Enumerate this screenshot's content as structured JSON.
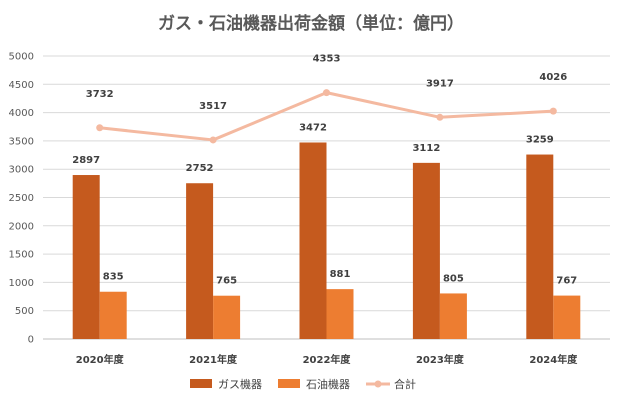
{
  "chart_data": {
    "type": "bar",
    "title": "ガス・石油機器出荷金額（単位：億円）",
    "categories": [
      "2020年度",
      "2021年度",
      "2022年度",
      "2023年度",
      "2024年度"
    ],
    "series": [
      {
        "name": "ガス機器",
        "kind": "bar",
        "color": "#C55A1E",
        "values": [
          2897,
          2752,
          3472,
          3112,
          3259
        ]
      },
      {
        "name": "石油機器",
        "kind": "bar",
        "color": "#ED7D31",
        "values": [
          835,
          765,
          881,
          805,
          767
        ]
      },
      {
        "name": "合計",
        "kind": "line",
        "color": "#F4B9A0",
        "values": [
          3732,
          3517,
          4353,
          3917,
          4026
        ]
      }
    ],
    "ylim": [
      0,
      5000
    ],
    "yticks": [
      0,
      500,
      1000,
      1500,
      2000,
      2500,
      3000,
      3500,
      4000,
      4500,
      5000
    ],
    "grid": true,
    "legend_position": "bottom"
  }
}
